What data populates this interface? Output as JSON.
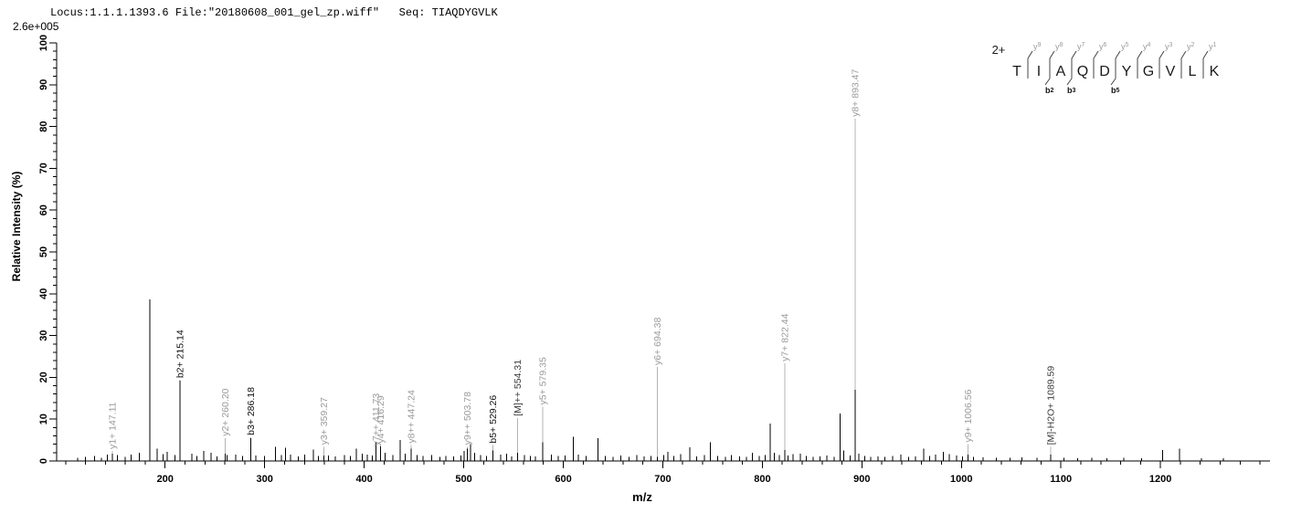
{
  "header": {
    "title": "Locus:1.1.1.1393.6 File:\"20180608_001_gel_zp.wiff\"   Seq: TIAQDYGVLK",
    "scale_label": "2.6e+005"
  },
  "sequence": {
    "charge_label": "2+",
    "residues": [
      "T",
      "I",
      "A",
      "Q",
      "D",
      "Y",
      "G",
      "V",
      "L",
      "K"
    ],
    "y_ion_labels": [
      "y9",
      "y8",
      "y7",
      "y6",
      "y5",
      "y4",
      "y3",
      "y2",
      "y1"
    ],
    "b_ion_labels": [
      {
        "boundary": 2,
        "label": "b2"
      },
      {
        "boundary": 3,
        "label": "b3"
      },
      {
        "boundary": 5,
        "label": "b5"
      }
    ]
  },
  "chart_data": {
    "type": "bar",
    "subtype": "ms2-mass-spectrum",
    "xlabel": "m/z",
    "ylabel": "Relative  Intensity (%)",
    "x_range": [
      91,
      1310
    ],
    "y_range": [
      0,
      100
    ],
    "x_major_ticks": [
      200,
      300,
      400,
      500,
      600,
      700,
      800,
      900,
      1000,
      1100,
      1200
    ],
    "x_minor_step": 20,
    "y_major_step": 10,
    "y_minor_step": 2,
    "colors": {
      "axis": "#000000",
      "peak": "#000000",
      "leader": "#b4b4b4",
      "y_label": "#9a9a9a",
      "b_label": "#111111",
      "M_label": "#3a3a3a",
      "seq_letter": "#1a1a1a",
      "seq_mark": "#444444"
    },
    "labeled_peaks": [
      {
        "label": "y1+ 147.11",
        "mz": 147.11,
        "intensity": 1.7,
        "label_base": 2.4,
        "type": "y"
      },
      {
        "label": "b2+ 215.14",
        "mz": 215.14,
        "intensity": 19.2,
        "label_base": 19.4,
        "type": "b"
      },
      {
        "label": "y2+ 260.20",
        "mz": 260.2,
        "intensity": 1.7,
        "label_base": 5.5,
        "type": "y"
      },
      {
        "label": "b3+ 286.18",
        "mz": 286.18,
        "intensity": 5.5,
        "label_base": 5.7,
        "type": "b"
      },
      {
        "label": "y3+ 359.27",
        "mz": 359.27,
        "intensity": 1.3,
        "label_base": 3.4,
        "type": "y"
      },
      {
        "label": "y7++ 411.73",
        "mz": 411.73,
        "intensity": 4.5,
        "label_base": 3.2,
        "type": "y"
      },
      {
        "label": "y4+ 416.29",
        "mz": 416.29,
        "intensity": 3.5,
        "label_base": 3.8,
        "type": "y"
      },
      {
        "label": "y8++ 447.24",
        "mz": 447.24,
        "intensity": 3.0,
        "label_base": 3.8,
        "type": "y"
      },
      {
        "label": "y9++ 503.78",
        "mz": 503.78,
        "intensity": 3.0,
        "label_base": 3.4,
        "type": "y"
      },
      {
        "label": "b5+ 529.26",
        "mz": 529.26,
        "intensity": 2.5,
        "label_base": 3.8,
        "type": "b"
      },
      {
        "label": "[M]++ 554.31",
        "mz": 554.31,
        "intensity": 2.0,
        "label_base": 10.3,
        "type": "M"
      },
      {
        "label": "y5+ 579.35",
        "mz": 579.35,
        "intensity": 4.5,
        "label_base": 13.0,
        "type": "y"
      },
      {
        "label": "y6+ 694.38",
        "mz": 694.38,
        "intensity": 1.0,
        "label_base": 22.5,
        "type": "y"
      },
      {
        "label": "y7+ 822.44",
        "mz": 822.44,
        "intensity": 2.6,
        "label_base": 23.4,
        "type": "y"
      },
      {
        "label": "y8+ 893.47",
        "mz": 893.47,
        "intensity": 17.0,
        "label_base": 81.9,
        "type": "y"
      },
      {
        "label": "y9+ 1006.56",
        "mz": 1006.56,
        "intensity": 1.5,
        "label_base": 4.0,
        "type": "y"
      },
      {
        "label": "[M]-H2O+ 1089.59",
        "mz": 1089.59,
        "intensity": 1.5,
        "label_base": 3.4,
        "type": "M"
      }
    ],
    "noise_peaks": [
      [
        112,
        0.8
      ],
      [
        120,
        1.0
      ],
      [
        129,
        1.2
      ],
      [
        136,
        0.8
      ],
      [
        142,
        1.5
      ],
      [
        152,
        1.4
      ],
      [
        160,
        1.0
      ],
      [
        166,
        1.5
      ],
      [
        174,
        2.0
      ],
      [
        184.6,
        38.6
      ],
      [
        192,
        3.0
      ],
      [
        198,
        1.6
      ],
      [
        202,
        2.2
      ],
      [
        210,
        1.4
      ],
      [
        227,
        1.8
      ],
      [
        232,
        1.2
      ],
      [
        239,
        2.4
      ],
      [
        246,
        2.0
      ],
      [
        252,
        1.1
      ],
      [
        262,
        1.4
      ],
      [
        271,
        1.5
      ],
      [
        278,
        1.2
      ],
      [
        291,
        1.3
      ],
      [
        300,
        1.2
      ],
      [
        311,
        3.4
      ],
      [
        317,
        1.4
      ],
      [
        321,
        3.2
      ],
      [
        326,
        1.5
      ],
      [
        334,
        1.1
      ],
      [
        340,
        1.5
      ],
      [
        349,
        2.7
      ],
      [
        354,
        1.2
      ],
      [
        364,
        1.3
      ],
      [
        371,
        1.1
      ],
      [
        380,
        1.4
      ],
      [
        386,
        1.2
      ],
      [
        392,
        3.0
      ],
      [
        398,
        1.8
      ],
      [
        403,
        1.5
      ],
      [
        408,
        1.3
      ],
      [
        421,
        2.0
      ],
      [
        429,
        1.4
      ],
      [
        436,
        5.0
      ],
      [
        441,
        1.7
      ],
      [
        453,
        1.4
      ],
      [
        459,
        1.2
      ],
      [
        468,
        1.4
      ],
      [
        476,
        1.0
      ],
      [
        482,
        1.2
      ],
      [
        490,
        1.1
      ],
      [
        497,
        1.3
      ],
      [
        500.5,
        2.4
      ],
      [
        507,
        4.0
      ],
      [
        511,
        2.0
      ],
      [
        517,
        1.4
      ],
      [
        523,
        1.2
      ],
      [
        537,
        1.5
      ],
      [
        543,
        1.8
      ],
      [
        548,
        1.1
      ],
      [
        561,
        1.4
      ],
      [
        567,
        1.2
      ],
      [
        572,
        1.1
      ],
      [
        588,
        1.5
      ],
      [
        595,
        1.2
      ],
      [
        602,
        1.3
      ],
      [
        610,
        5.8
      ],
      [
        615,
        1.5
      ],
      [
        623,
        1.2
      ],
      [
        635,
        5.5
      ],
      [
        642,
        1.2
      ],
      [
        650,
        1.0
      ],
      [
        658,
        1.3
      ],
      [
        666,
        1.0
      ],
      [
        674,
        1.4
      ],
      [
        681,
        1.1
      ],
      [
        688,
        1.2
      ],
      [
        701,
        1.4
      ],
      [
        705,
        2.2
      ],
      [
        711,
        1.2
      ],
      [
        718,
        1.6
      ],
      [
        727,
        3.3
      ],
      [
        734,
        1.1
      ],
      [
        742,
        1.4
      ],
      [
        748,
        4.5
      ],
      [
        755,
        1.2
      ],
      [
        763,
        1.0
      ],
      [
        769,
        1.4
      ],
      [
        777,
        1.1
      ],
      [
        784,
        1.0
      ],
      [
        790,
        2.0
      ],
      [
        797,
        1.2
      ],
      [
        803,
        1.4
      ],
      [
        808,
        9.0
      ],
      [
        812,
        2.0
      ],
      [
        817,
        1.4
      ],
      [
        826,
        1.3
      ],
      [
        831,
        1.6
      ],
      [
        838,
        1.8
      ],
      [
        844,
        1.2
      ],
      [
        851,
        1.0
      ],
      [
        858,
        1.1
      ],
      [
        865,
        1.3
      ],
      [
        872,
        1.0
      ],
      [
        878,
        11.3
      ],
      [
        882,
        2.5
      ],
      [
        888,
        1.3
      ],
      [
        897,
        1.8
      ],
      [
        903,
        1.2
      ],
      [
        909,
        1.0
      ],
      [
        916,
        1.1
      ],
      [
        923,
        1.0
      ],
      [
        931,
        1.2
      ],
      [
        939,
        1.5
      ],
      [
        947,
        1.0
      ],
      [
        954,
        1.1
      ],
      [
        962,
        3.0
      ],
      [
        968,
        1.2
      ],
      [
        974,
        1.5
      ],
      [
        982,
        2.2
      ],
      [
        988,
        1.6
      ],
      [
        995,
        1.3
      ],
      [
        1001,
        1.1
      ],
      [
        1012,
        1.0
      ],
      [
        1022,
        0.9
      ],
      [
        1035,
        0.8
      ],
      [
        1049,
        0.8
      ],
      [
        1061,
        0.9
      ],
      [
        1076,
        0.8
      ],
      [
        1103,
        0.8
      ],
      [
        1117,
        0.7
      ],
      [
        1131,
        0.8
      ],
      [
        1146,
        0.7
      ],
      [
        1163,
        0.8
      ],
      [
        1181,
        0.7
      ],
      [
        1202,
        2.6
      ],
      [
        1219,
        2.9
      ],
      [
        1241,
        0.7
      ],
      [
        1263,
        0.7
      ]
    ]
  }
}
